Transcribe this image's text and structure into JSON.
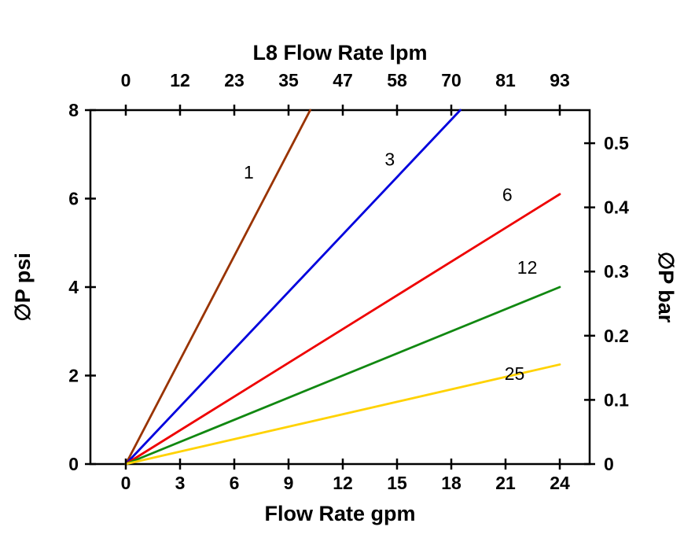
{
  "chart_data": {
    "type": "line",
    "title": "L8  Flow Rate lpm",
    "xlabel_top": "L8  Flow Rate lpm",
    "xlabel_bottom": "Flow Rate gpm",
    "ylabel_left": "∅P psi",
    "ylabel_right": "∅P bar",
    "x_bottom_ticks": [
      0,
      3,
      6,
      9,
      12,
      15,
      18,
      21,
      24
    ],
    "x_top_ticks": [
      "0",
      "12",
      "23",
      "35",
      "47",
      "58",
      "70",
      "81",
      "93"
    ],
    "y_left_ticks": [
      0,
      2,
      4,
      6,
      8
    ],
    "y_right_ticks": [
      "0",
      "0.1",
      "0.2",
      "0.3",
      "0.4",
      "0.5"
    ],
    "x_range_gpm": [
      0,
      24
    ],
    "y_range_psi": [
      0,
      8
    ],
    "psi_per_bar": 14.5038,
    "grid": false,
    "legend": "inline-labels",
    "series": [
      {
        "name": "1",
        "color": "#993300",
        "points": [
          [
            0,
            0
          ],
          [
            10.2,
            8.0
          ]
        ],
        "label_at": [
          6.8,
          6.45
        ]
      },
      {
        "name": "3",
        "color": "#0000DD",
        "points": [
          [
            0,
            0
          ],
          [
            18.5,
            8.0
          ]
        ],
        "label_at": [
          14.6,
          6.75
        ]
      },
      {
        "name": "6",
        "color": "#EE0000",
        "points": [
          [
            0,
            0
          ],
          [
            24.0,
            6.1
          ]
        ],
        "label_at": [
          21.1,
          5.95
        ]
      },
      {
        "name": "12",
        "color": "#118811",
        "points": [
          [
            0,
            0
          ],
          [
            24.0,
            4.0
          ]
        ],
        "label_at": [
          22.2,
          4.3
        ]
      },
      {
        "name": "25",
        "color": "#FFD200",
        "points": [
          [
            0,
            0
          ],
          [
            24.0,
            2.25
          ]
        ],
        "label_at": [
          21.5,
          1.9
        ]
      }
    ]
  }
}
